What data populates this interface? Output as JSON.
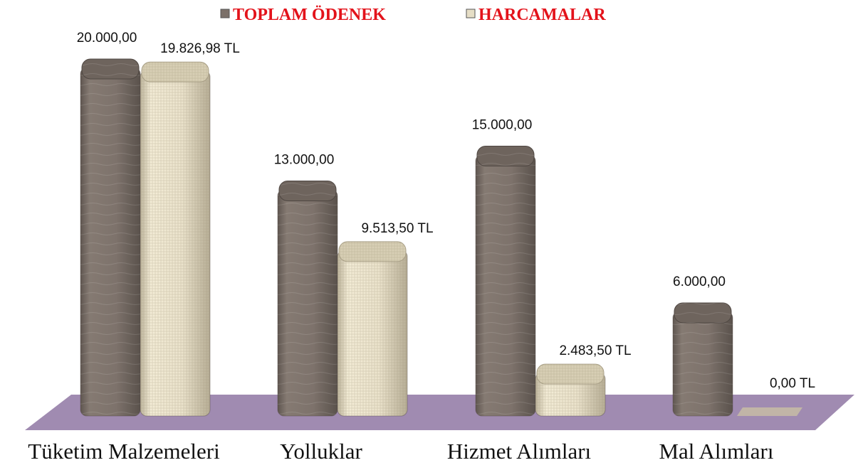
{
  "chart_data": {
    "type": "bar3d",
    "categories": [
      "Tüketim Malzemeleri",
      "Yolluklar",
      "Hizmet Alımları",
      "Mal Alımları"
    ],
    "series": [
      {
        "name": "TOPLAM ÖDENEK",
        "color": "#7b7069",
        "values": [
          20000,
          13000,
          15000,
          6000
        ],
        "value_labels": [
          "20.000,00",
          "13.000,00",
          "15.000,00",
          "6.000,00"
        ]
      },
      {
        "name": "HARCAMALAR",
        "color": "#e6dec6",
        "values": [
          19826.98,
          9513.5,
          2483.5,
          0
        ],
        "value_labels": [
          "19.826,98 TL",
          "9.513,50 TL",
          "2.483,50 TL",
          "0,00 TL"
        ]
      }
    ],
    "legend": "top"
  }
}
